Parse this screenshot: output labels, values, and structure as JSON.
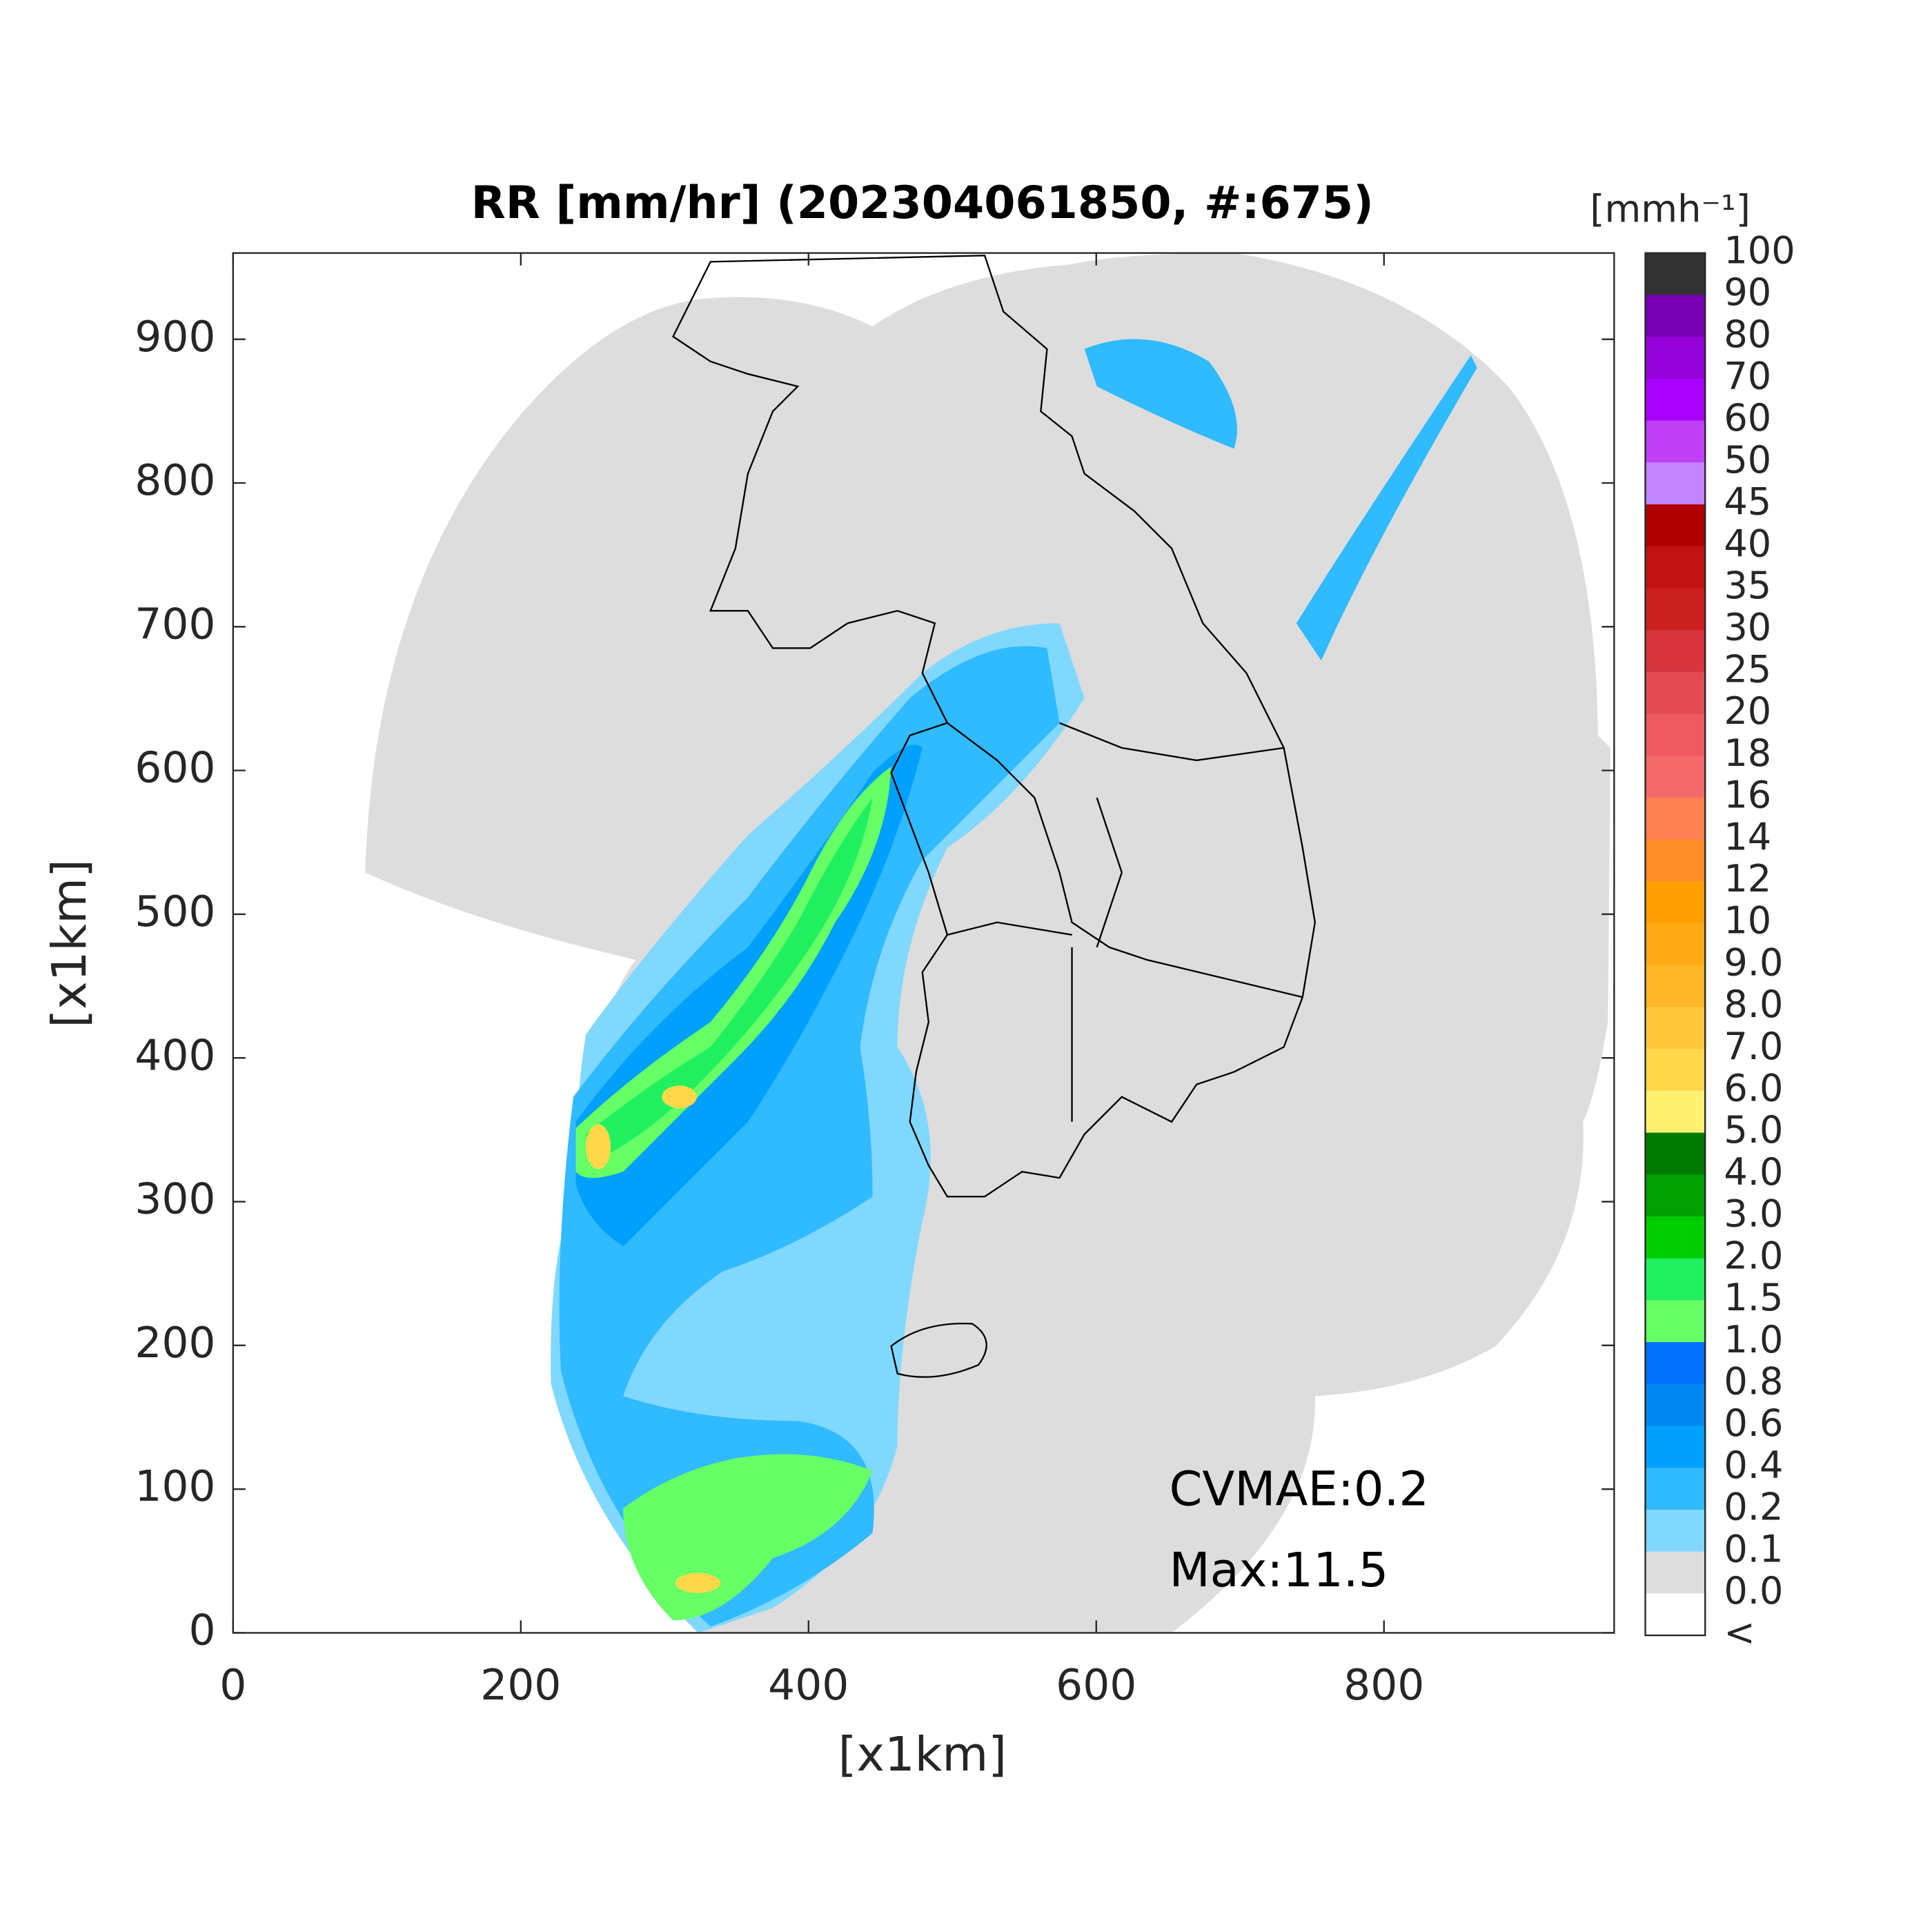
{
  "chart_data": {
    "type": "map",
    "title": "RR [mm/hr] (202304061850, #:675)",
    "xlabel": "[x1km]",
    "ylabel": "[x1km]",
    "xlim": [
      0,
      960
    ],
    "ylim": [
      0,
      960
    ],
    "xticks": [
      0,
      200,
      400,
      600,
      800
    ],
    "yticks": [
      0,
      100,
      200,
      300,
      400,
      500,
      600,
      700,
      800,
      900
    ],
    "annotations": [
      "CVMAE:0.2",
      "Max:11.5"
    ],
    "colorbar": {
      "unit": "[mmh⁻¹]",
      "labels": [
        "100",
        "90",
        "80",
        "70",
        "60",
        "50",
        "45",
        "40",
        "35",
        "30",
        "25",
        "20",
        "18",
        "16",
        "14",
        "12",
        "10",
        "9.0",
        "8.0",
        "7.0",
        "6.0",
        "5.0",
        "4.0",
        "3.0",
        "2.0",
        "1.5",
        "1.0",
        "0.8",
        "0.6",
        "0.4",
        "0.2",
        "0.1",
        "0.0",
        "<"
      ],
      "colors": [
        "#333333",
        "#7a00b4",
        "#9400d8",
        "#aa00ff",
        "#c040f8",
        "#c385ff",
        "#b00000",
        "#c21212",
        "#cc2020",
        "#d8343e",
        "#e44a52",
        "#ee5a60",
        "#f46a6a",
        "#ff8050",
        "#ff8c28",
        "#ffa000",
        "#ffaa14",
        "#ffb628",
        "#ffc83a",
        "#ffd84a",
        "#fff070",
        "#007a00",
        "#00a000",
        "#00cc00",
        "#20f060",
        "#66ff66",
        "#0070ff",
        "#0088f0",
        "#00a0ff",
        "#30baff",
        "#80d8ff",
        "#dddddd",
        "#ffffff"
      ]
    }
  }
}
